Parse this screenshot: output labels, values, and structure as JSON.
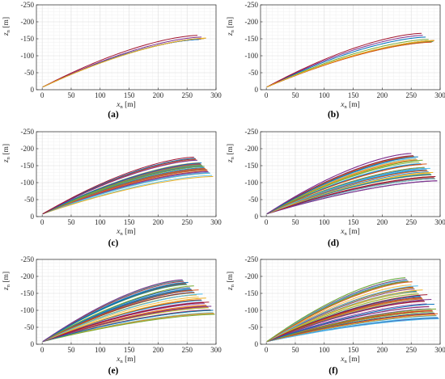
{
  "figure": {
    "panels": [
      {
        "caption": "(a)",
        "chart_index": 0
      },
      {
        "caption": "(b)",
        "chart_index": 1
      },
      {
        "caption": "(c)",
        "chart_index": 2
      },
      {
        "caption": "(d)",
        "chart_index": 3
      },
      {
        "caption": "(e)",
        "chart_index": 4
      },
      {
        "caption": "(f)",
        "chart_index": 5
      }
    ]
  },
  "chart_data": [
    {
      "type": "line",
      "xlabel_main": "x",
      "xlabel_sub": "n",
      "xlabel_unit": "[m]",
      "ylabel_main": "z",
      "ylabel_sub": "n",
      "ylabel_unit": "[m]",
      "xlim": [
        -10,
        300
      ],
      "ylim": [
        0,
        -250
      ],
      "xticks": [
        "0",
        "50",
        "100",
        "150",
        "200",
        "250",
        "300"
      ],
      "yticks": [
        "0",
        "-50",
        "-100",
        "-150",
        "-200",
        "-250"
      ],
      "grid": true,
      "minor_grid": true,
      "series_shape": "ballistic trajectories from origin, rising curves",
      "series_colors": [
        "#0072BD",
        "#D95319",
        "#EDB120",
        "#7E2F8E",
        "#77AC30",
        "#4DBEEE",
        "#A2142F"
      ],
      "series": [
        {
          "x": [
            0,
            2,
            25,
            50,
            100,
            150,
            200,
            250,
            270
          ],
          "y": [
            0,
            -12,
            -29,
            -45,
            -73,
            -98,
            -121,
            -141,
            -148
          ],
          "x_end": 270,
          "y_end": -148
        },
        {
          "x": [
            0,
            2,
            25,
            50,
            100,
            150,
            200,
            250,
            275
          ],
          "y": [
            0,
            -12,
            -30,
            -46,
            -75,
            -101,
            -124,
            -145,
            -155
          ],
          "x_end": 275,
          "y_end": -155
        },
        {
          "x": [
            0,
            2,
            25,
            50,
            100,
            150,
            200,
            250,
            268
          ],
          "y": [
            0,
            -12,
            -30,
            -47,
            -76,
            -103,
            -127,
            -149,
            -160
          ],
          "x_end": 268,
          "y_end": -160
        },
        {
          "x": [
            0,
            2,
            25,
            50,
            100,
            150,
            200,
            250,
            283
          ],
          "y": [
            0,
            -12,
            -29,
            -45,
            -74,
            -99,
            -122,
            -142,
            -152
          ],
          "x_end": 283,
          "y_end": -152
        }
      ]
    },
    {
      "type": "line",
      "xlabel_main": "x",
      "xlabel_sub": "n",
      "xlabel_unit": "[m]",
      "ylabel_main": "z",
      "ylabel_sub": "n",
      "ylabel_unit": "[m]",
      "xlim": [
        -10,
        300
      ],
      "ylim": [
        0,
        -250
      ],
      "xticks": [
        "0",
        "50",
        "100",
        "150",
        "200",
        "250",
        "300"
      ],
      "yticks": [
        "0",
        "-50",
        "-100",
        "-150",
        "-200",
        "-250"
      ],
      "grid": true,
      "minor_grid": true,
      "series": [
        {
          "x_end": 285,
          "y_end": -140
        },
        {
          "x_end": 280,
          "y_end": -148
        },
        {
          "x_end": 275,
          "y_end": -155
        },
        {
          "x_end": 270,
          "y_end": -160
        },
        {
          "x_end": 268,
          "y_end": -166
        },
        {
          "x_end": 290,
          "y_end": -145
        }
      ]
    },
    {
      "type": "line",
      "xlabel_main": "x",
      "xlabel_sub": "n",
      "xlabel_unit": "[m]",
      "ylabel_main": "z",
      "ylabel_sub": "n",
      "ylabel_unit": "[m]",
      "xlim": [
        -10,
        300
      ],
      "ylim": [
        0,
        -250
      ],
      "xticks": [
        "0",
        "50",
        "100",
        "150",
        "200",
        "250",
        "300"
      ],
      "yticks": [
        "0",
        "-50",
        "-100",
        "-150",
        "-200",
        "-250"
      ],
      "grid": true,
      "minor_grid": true,
      "series": [
        {
          "x_end": 295,
          "y_end": -118
        },
        {
          "x_end": 290,
          "y_end": -128
        },
        {
          "x_end": 285,
          "y_end": -138
        },
        {
          "x_end": 280,
          "y_end": -148
        },
        {
          "x_end": 275,
          "y_end": -158
        },
        {
          "x_end": 268,
          "y_end": -166
        },
        {
          "x_end": 262,
          "y_end": -175
        }
      ]
    },
    {
      "type": "line",
      "xlabel_main": "x",
      "xlabel_sub": "n",
      "xlabel_unit": "[m]",
      "ylabel_main": "z",
      "ylabel_sub": "n",
      "ylabel_unit": "[m]",
      "xlim": [
        -10,
        300
      ],
      "ylim": [
        0,
        -250
      ],
      "xticks": [
        "0",
        "50",
        "100",
        "150",
        "200",
        "250",
        "300"
      ],
      "yticks": [
        "0",
        "-50",
        "-100",
        "-150",
        "-200",
        "-250"
      ],
      "grid": true,
      "minor_grid": true,
      "series": [
        {
          "x_end": 295,
          "y_end": -105
        },
        {
          "x_end": 292,
          "y_end": -118
        },
        {
          "x_end": 288,
          "y_end": -130
        },
        {
          "x_end": 283,
          "y_end": -142
        },
        {
          "x_end": 277,
          "y_end": -155
        },
        {
          "x_end": 270,
          "y_end": -166
        },
        {
          "x_end": 262,
          "y_end": -176
        },
        {
          "x_end": 250,
          "y_end": -186
        }
      ]
    },
    {
      "type": "line",
      "xlabel_main": "x",
      "xlabel_sub": "n",
      "xlabel_unit": "[m]",
      "ylabel_main": "z",
      "ylabel_sub": "n",
      "ylabel_unit": "[m]",
      "xlim": [
        -10,
        300
      ],
      "ylim": [
        0,
        -250
      ],
      "xticks": [
        "0",
        "50",
        "100",
        "150",
        "200",
        "250",
        "300"
      ],
      "yticks": [
        "0",
        "-50",
        "-100",
        "-150",
        "-200",
        "-250"
      ],
      "grid": true,
      "minor_grid": true,
      "series": [
        {
          "x_end": 298,
          "y_end": -88
        },
        {
          "x_end": 295,
          "y_end": -100
        },
        {
          "x_end": 292,
          "y_end": -112
        },
        {
          "x_end": 288,
          "y_end": -124
        },
        {
          "x_end": 283,
          "y_end": -136
        },
        {
          "x_end": 277,
          "y_end": -148
        },
        {
          "x_end": 270,
          "y_end": -160
        },
        {
          "x_end": 262,
          "y_end": -172
        },
        {
          "x_end": 252,
          "y_end": -182
        },
        {
          "x_end": 242,
          "y_end": -190
        }
      ]
    },
    {
      "type": "line",
      "xlabel_main": "x",
      "xlabel_sub": "n",
      "xlabel_unit": "[m]",
      "ylabel_main": "z",
      "ylabel_sub": "n",
      "ylabel_unit": "[m]",
      "xlim": [
        -10,
        300
      ],
      "ylim": [
        0,
        -250
      ],
      "xticks": [
        "0",
        "50",
        "100",
        "150",
        "200",
        "250",
        "300"
      ],
      "yticks": [
        "0",
        "-50",
        "-100",
        "-150",
        "-200",
        "-250"
      ],
      "grid": true,
      "minor_grid": true,
      "series": [
        {
          "x_end": 298,
          "y_end": -75
        },
        {
          "x_end": 296,
          "y_end": -90
        },
        {
          "x_end": 293,
          "y_end": -104
        },
        {
          "x_end": 290,
          "y_end": -118
        },
        {
          "x_end": 285,
          "y_end": -132
        },
        {
          "x_end": 278,
          "y_end": -146
        },
        {
          "x_end": 270,
          "y_end": -160
        },
        {
          "x_end": 262,
          "y_end": -172
        },
        {
          "x_end": 252,
          "y_end": -184
        },
        {
          "x_end": 240,
          "y_end": -196
        }
      ]
    }
  ]
}
